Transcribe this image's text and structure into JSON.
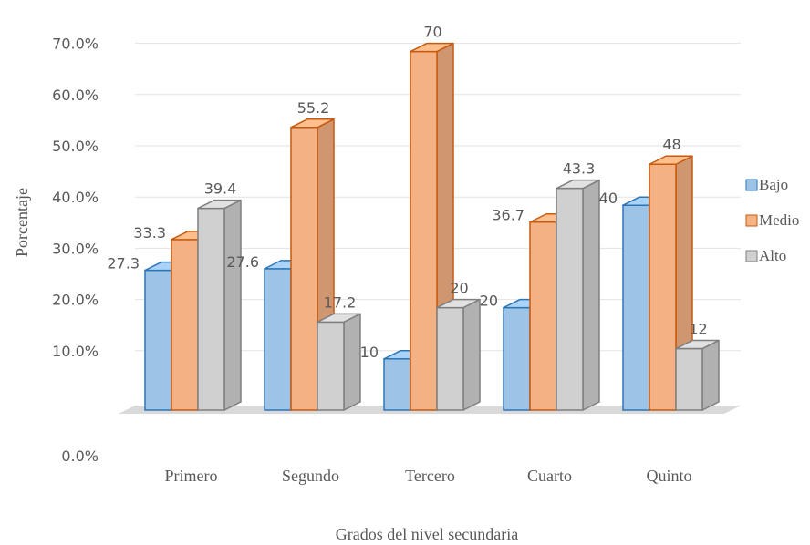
{
  "chart_data": {
    "type": "bar",
    "style": "3d-clustered-column",
    "categories": [
      "Primero",
      "Segundo",
      "Tercero",
      "Cuarto",
      "Quinto"
    ],
    "series": [
      {
        "name": "Bajo",
        "values": [
          27.3,
          27.6,
          10,
          20,
          40
        ],
        "labels": [
          "27.3",
          "27.6",
          "10",
          "20",
          "40"
        ],
        "fill": "#9DC3E6",
        "stroke": "#2E75B6"
      },
      {
        "name": "Medio",
        "values": [
          33.3,
          55.2,
          70,
          36.7,
          48
        ],
        "labels": [
          "33.3",
          "55.2",
          "70",
          "36.7",
          "48"
        ],
        "fill": "#F4B183",
        "stroke": "#C55A11"
      },
      {
        "name": "Alto",
        "values": [
          39.4,
          17.2,
          20,
          43.3,
          12
        ],
        "labels": [
          "39.4",
          "17.2",
          "20",
          "43.3",
          "12"
        ],
        "fill": "#D0D0D0",
        "stroke": "#7F7F7F"
      }
    ],
    "yticks": [
      0,
      10,
      20,
      30,
      40,
      50,
      60,
      70
    ],
    "ytick_labels": [
      "0.0%",
      "10.0%",
      "20.0%",
      "30.0%",
      "40.0%",
      "50.0%",
      "60.0%",
      "70.0%"
    ],
    "ylim": [
      0,
      70
    ],
    "xlabel": "Grados del nivel secundaria",
    "ylabel": "Porcentaje",
    "grid": true,
    "legend": "right"
  }
}
